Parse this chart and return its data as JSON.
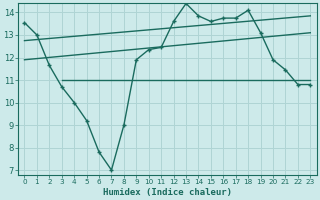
{
  "xlabel": "Humidex (Indice chaleur)",
  "bg_color": "#cdeaea",
  "grid_color": "#afd4d4",
  "line_color": "#1a6b5e",
  "xlim": [
    -0.5,
    23.5
  ],
  "ylim": [
    6.8,
    14.4
  ],
  "yticks": [
    7,
    8,
    9,
    10,
    11,
    12,
    13,
    14
  ],
  "xticks": [
    0,
    1,
    2,
    3,
    4,
    5,
    6,
    7,
    8,
    9,
    10,
    11,
    12,
    13,
    14,
    15,
    16,
    17,
    18,
    19,
    20,
    21,
    22,
    23
  ],
  "line1_x": [
    0,
    1,
    2,
    3,
    4,
    5,
    6,
    7,
    8,
    9,
    10,
    11,
    12,
    13,
    14,
    15,
    16,
    17,
    18,
    19,
    20,
    21,
    22,
    23
  ],
  "line1_y": [
    13.55,
    13.0,
    11.65,
    10.7,
    10.0,
    9.2,
    7.8,
    7.0,
    9.0,
    11.9,
    12.35,
    12.45,
    13.6,
    14.4,
    13.85,
    13.6,
    13.75,
    13.75,
    14.1,
    13.1,
    11.9,
    11.45,
    10.8,
    10.8
  ],
  "line2_x": [
    3,
    23
  ],
  "line2_y": [
    11.0,
    11.0
  ],
  "line3_x": [
    0,
    23
  ],
  "line3_y": [
    11.9,
    13.1
  ],
  "line4_x": [
    0,
    23
  ],
  "line4_y": [
    12.75,
    13.85
  ]
}
